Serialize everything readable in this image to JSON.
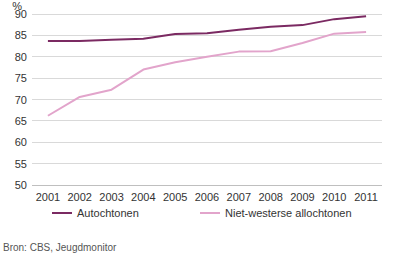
{
  "chart_data": {
    "type": "line",
    "y_label": "%",
    "categories": [
      "2001",
      "2002",
      "2003",
      "2004",
      "2005",
      "2006",
      "2007",
      "2008",
      "2009",
      "2010",
      "2011"
    ],
    "series": [
      {
        "name": "Autochtonen",
        "color": "#7b2a62",
        "values": [
          83.7,
          83.7,
          84.0,
          84.2,
          85.3,
          85.5,
          86.3,
          87.0,
          87.4,
          88.8,
          89.5
        ]
      },
      {
        "name": "Niet-westerse allochtonen",
        "color": "#e2a4cb",
        "values": [
          66.2,
          70.6,
          72.3,
          77.0,
          78.7,
          80.0,
          81.2,
          81.3,
          83.2,
          85.4,
          85.8
        ]
      }
    ],
    "ylim": [
      50,
      90
    ],
    "yticks": [
      50,
      55,
      60,
      65,
      70,
      75,
      80,
      85,
      90
    ],
    "grid": true,
    "legend": "bottom",
    "source": "Bron: CBS, Jeugdmonitor"
  }
}
